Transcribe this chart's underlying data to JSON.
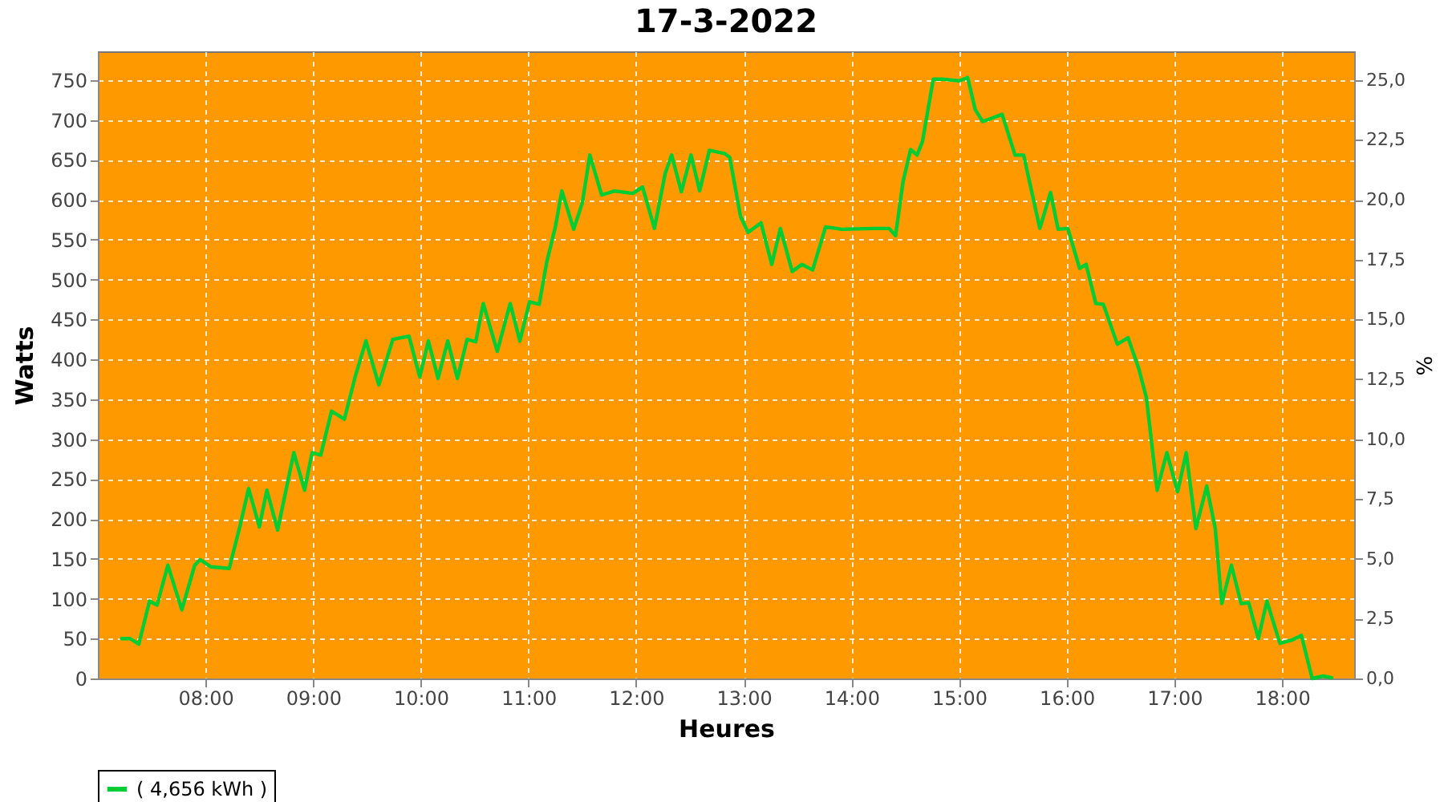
{
  "chart_data": {
    "type": "line",
    "title": "17-3-2022",
    "xlabel": "Heures",
    "ylabel": "Watts",
    "y2label": "%",
    "x": [
      7.22,
      7.3,
      7.38,
      7.48,
      7.55,
      7.65,
      7.78,
      7.9,
      7.95,
      8.05,
      8.22,
      8.32,
      8.4,
      8.5,
      8.57,
      8.67,
      8.82,
      8.92,
      8.99,
      9.07,
      9.17,
      9.29,
      9.39,
      9.49,
      9.61,
      9.74,
      9.89,
      9.99,
      10.07,
      10.16,
      10.25,
      10.34,
      10.43,
      10.51,
      10.58,
      10.71,
      10.83,
      10.92,
      11.01,
      11.1,
      11.17,
      11.25,
      11.31,
      11.42,
      11.5,
      11.57,
      11.68,
      11.8,
      11.97,
      12.06,
      12.17,
      12.27,
      12.33,
      12.42,
      12.51,
      12.59,
      12.68,
      12.82,
      12.87,
      12.97,
      13.04,
      13.16,
      13.26,
      13.34,
      13.45,
      13.54,
      13.64,
      13.76,
      13.91,
      14.21,
      14.35,
      14.41,
      14.48,
      14.55,
      14.61,
      14.66,
      14.76,
      14.86,
      15.0,
      15.08,
      15.15,
      15.22,
      15.4,
      15.52,
      15.6,
      15.75,
      15.85,
      15.92,
      16.01,
      16.12,
      16.18,
      16.27,
      16.34,
      16.47,
      16.57,
      16.67,
      16.74,
      16.84,
      16.93,
      17.03,
      17.11,
      17.2,
      17.3,
      17.38,
      17.44,
      17.53,
      17.62,
      17.69,
      17.78,
      17.86,
      17.98,
      18.09,
      18.18,
      18.28,
      18.38,
      18.46
    ],
    "series": [
      {
        "name": "( 4,656 kWh )",
        "color": "#00cc33",
        "values": [
          50,
          50,
          43,
          97,
          92,
          142,
          86,
          142,
          149,
          140,
          138,
          191,
          238,
          190,
          236,
          186,
          283,
          236,
          283,
          280,
          335,
          325,
          378,
          423,
          368,
          425,
          429,
          378,
          423,
          376,
          423,
          376,
          425,
          422,
          470,
          410,
          470,
          423,
          472,
          469,
          522,
          566,
          611,
          563,
          596,
          656,
          606,
          611,
          608,
          616,
          564,
          633,
          656,
          610,
          656,
          611,
          662,
          658,
          653,
          579,
          559,
          571,
          519,
          564,
          510,
          519,
          512,
          566,
          563,
          564,
          564,
          555,
          623,
          663,
          656,
          673,
          751,
          751,
          749,
          753,
          713,
          698,
          707,
          656,
          656,
          564,
          609,
          563,
          564,
          514,
          519,
          470,
          469,
          419,
          427,
          388,
          352,
          236,
          283,
          234,
          283,
          188,
          241,
          188,
          94,
          142,
          94,
          95,
          50,
          97,
          44,
          48,
          54,
          0,
          3,
          1
        ]
      }
    ],
    "xlim": [
      7.0,
      18.67
    ],
    "xticks": [
      {
        "value": 8,
        "label": "08:00"
      },
      {
        "value": 9,
        "label": "09:00"
      },
      {
        "value": 10,
        "label": "10:00"
      },
      {
        "value": 11,
        "label": "11:00"
      },
      {
        "value": 12,
        "label": "12:00"
      },
      {
        "value": 13,
        "label": "13:00"
      },
      {
        "value": 14,
        "label": "14:00"
      },
      {
        "value": 15,
        "label": "15:00"
      },
      {
        "value": 16,
        "label": "16:00"
      },
      {
        "value": 17,
        "label": "17:00"
      },
      {
        "value": 18,
        "label": "18:00"
      }
    ],
    "ylim": [
      0,
      786
    ],
    "yticks": [
      0,
      50,
      100,
      150,
      200,
      250,
      300,
      350,
      400,
      450,
      500,
      550,
      600,
      650,
      700,
      750
    ],
    "y2lim": [
      0,
      26.2
    ],
    "y2ticks": [
      {
        "value": 0,
        "label": "0,0"
      },
      {
        "value": 2.5,
        "label": "2,5"
      },
      {
        "value": 5,
        "label": "5,0"
      },
      {
        "value": 7.5,
        "label": "7,5"
      },
      {
        "value": 10,
        "label": "10,0"
      },
      {
        "value": 12.5,
        "label": "12,5"
      },
      {
        "value": 15,
        "label": "15,0"
      },
      {
        "value": 17.5,
        "label": "17,5"
      },
      {
        "value": 20,
        "label": "20,0"
      },
      {
        "value": 22.5,
        "label": "22,5"
      },
      {
        "value": 25,
        "label": "25,0"
      }
    ],
    "grid": true,
    "legend": "bottom",
    "line_style": "solid",
    "marker": "none"
  }
}
